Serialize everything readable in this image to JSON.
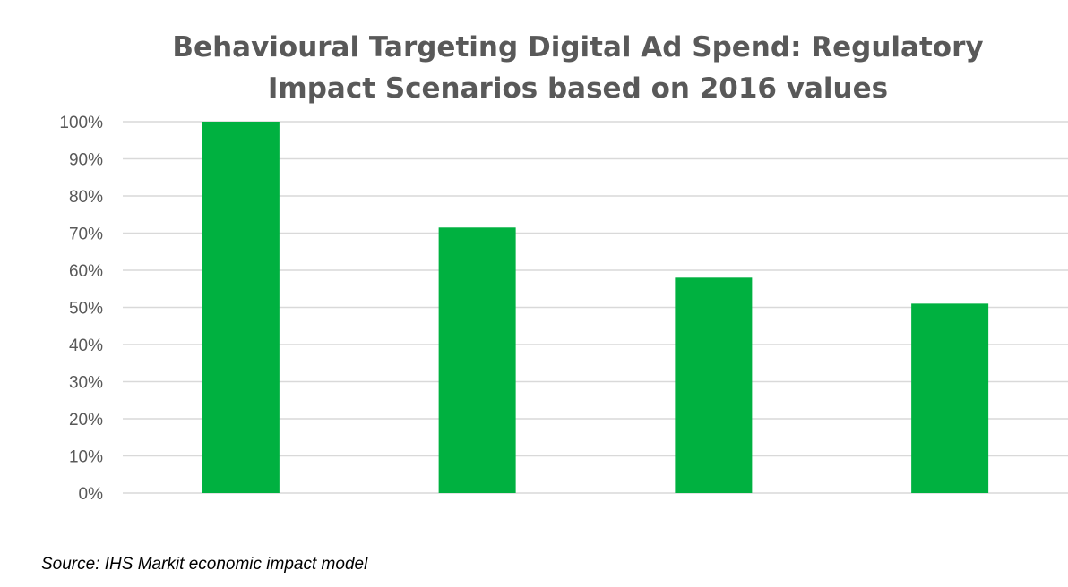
{
  "chart_data": {
    "type": "bar",
    "title": "Behavioural Targeting Digital Ad Spend: Regulatory Impact Scenarios based on 2016 values",
    "categories": [
      "",
      "",
      "",
      ""
    ],
    "values": [
      100,
      71.5,
      58,
      51
    ],
    "ylim": [
      0,
      100
    ],
    "yticks": [
      0,
      10,
      20,
      30,
      40,
      50,
      60,
      70,
      80,
      90,
      100
    ],
    "ytick_labels": [
      "0%",
      "10%",
      "20%",
      "30%",
      "40%",
      "50%",
      "60%",
      "70%",
      "80%",
      "90%",
      "100%"
    ],
    "grid": true,
    "bar_color": "#00B140",
    "gridline_color": "#D9D9D9"
  },
  "source": "Source: IHS Markit economic impact model"
}
